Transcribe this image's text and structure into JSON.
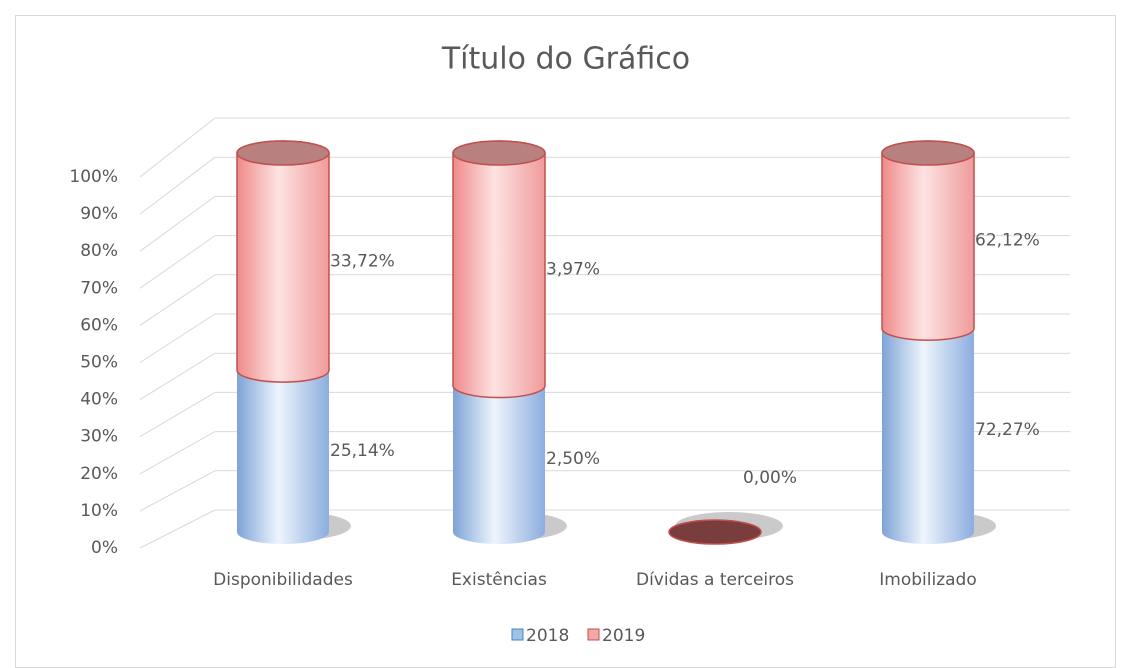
{
  "chart_data": {
    "type": "stacked-bar-100",
    "title": "Título do Gráfico",
    "categories": [
      "Disponibilidades",
      "Existências",
      "Dívidas a terceiros",
      "Imobilizado"
    ],
    "series": [
      {
        "name": "2018",
        "color": "#9dc3e6",
        "values": [
          25.14,
          2.5,
          0.0,
          72.27
        ],
        "value_labels": [
          "25,14%",
          "2,50%",
          "0,00%",
          "72,27%"
        ]
      },
      {
        "name": "2019",
        "color": "#f4a8a8",
        "values": [
          33.72,
          3.97,
          0.0,
          62.12
        ],
        "value_labels": [
          "33,72%",
          "3,97%",
          null,
          "62,12%"
        ]
      }
    ],
    "ylim": [
      0,
      100
    ],
    "yticks": [
      {
        "value": 0,
        "label": "0%"
      },
      {
        "value": 10,
        "label": "10%"
      },
      {
        "value": 20,
        "label": "20%"
      },
      {
        "value": 30,
        "label": "30%"
      },
      {
        "value": 40,
        "label": "40%"
      },
      {
        "value": 50,
        "label": "50%"
      },
      {
        "value": 60,
        "label": "60%"
      },
      {
        "value": 70,
        "label": "70%"
      },
      {
        "value": 80,
        "label": "80%"
      },
      {
        "value": 90,
        "label": "90%"
      },
      {
        "value": 100,
        "label": "100%"
      }
    ],
    "grid": true,
    "legend": "bottom"
  }
}
